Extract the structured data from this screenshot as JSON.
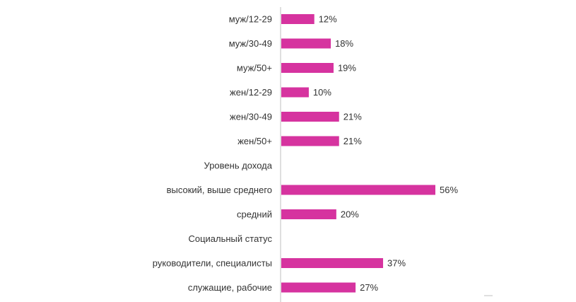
{
  "chart_data": {
    "type": "bar",
    "orientation": "horizontal",
    "title": "",
    "xlabel": "",
    "ylabel": "",
    "xlim": [
      0,
      60
    ],
    "grid": false,
    "legend": "none",
    "bar_color": "#d6339f",
    "rows": [
      {
        "label": "муж/12-29",
        "value": 12,
        "value_label": "12%"
      },
      {
        "label": "муж/30-49",
        "value": 18,
        "value_label": "18%"
      },
      {
        "label": "муж/50+",
        "value": 19,
        "value_label": "19%"
      },
      {
        "label": "жен/12-29",
        "value": 10,
        "value_label": "10%"
      },
      {
        "label": "жен/30-49",
        "value": 21,
        "value_label": "21%"
      },
      {
        "label": "жен/50+",
        "value": 21,
        "value_label": "21%"
      },
      {
        "label": "Уровень дохода",
        "value": null,
        "value_label": ""
      },
      {
        "label": "высокий, выше среднего",
        "value": 56,
        "value_label": "56%"
      },
      {
        "label": "средний",
        "value": 20,
        "value_label": "20%"
      },
      {
        "label": "Социальный статус",
        "value": null,
        "value_label": ""
      },
      {
        "label": "руководители, специалисты",
        "value": 37,
        "value_label": "37%"
      },
      {
        "label": "служащие, рабочие",
        "value": 27,
        "value_label": "27%"
      }
    ]
  }
}
